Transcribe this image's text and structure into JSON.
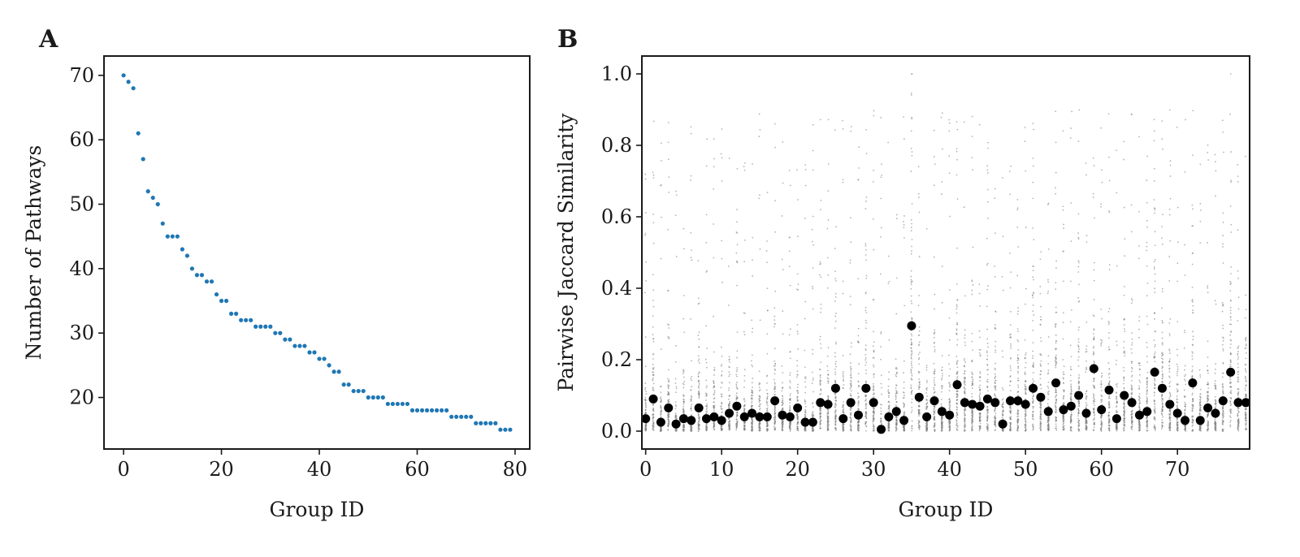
{
  "chart_data": [
    {
      "panel": "A",
      "type": "scatter",
      "xlabel": "Group ID",
      "ylabel": "Number of Pathways",
      "xlim": [
        -4,
        83
      ],
      "ylim": [
        12,
        73
      ],
      "xticks": [
        0,
        20,
        40,
        60,
        80
      ],
      "yticks": [
        20,
        30,
        40,
        50,
        60,
        70
      ],
      "grid": false,
      "legend": "none",
      "color": "#1f77b4",
      "x": [
        0,
        1,
        2,
        3,
        4,
        5,
        6,
        7,
        8,
        9,
        10,
        11,
        12,
        13,
        14,
        15,
        16,
        17,
        18,
        19,
        20,
        21,
        22,
        23,
        24,
        25,
        26,
        27,
        28,
        29,
        30,
        31,
        32,
        33,
        34,
        35,
        36,
        37,
        38,
        39,
        40,
        41,
        42,
        43,
        44,
        45,
        46,
        47,
        48,
        49,
        50,
        51,
        52,
        53,
        54,
        55,
        56,
        57,
        58,
        59,
        60,
        61,
        62,
        63,
        64,
        65,
        66,
        67,
        68,
        69,
        70,
        71,
        72,
        73,
        74,
        75,
        76,
        77,
        78,
        79
      ],
      "y": [
        70,
        69,
        68,
        61,
        57,
        52,
        51,
        50,
        47,
        45,
        45,
        45,
        43,
        42,
        40,
        39,
        39,
        38,
        38,
        36,
        35,
        35,
        33,
        33,
        32,
        32,
        32,
        31,
        31,
        31,
        31,
        30,
        30,
        29,
        29,
        28,
        28,
        28,
        27,
        27,
        26,
        26,
        25,
        24,
        24,
        22,
        22,
        21,
        21,
        21,
        20,
        20,
        20,
        20,
        19,
        19,
        19,
        19,
        19,
        18,
        18,
        18,
        18,
        18,
        18,
        18,
        18,
        17,
        17,
        17,
        17,
        17,
        16,
        16,
        16,
        16,
        16,
        15,
        15,
        15
      ]
    },
    {
      "panel": "B",
      "type": "scatter",
      "xlabel": "Group ID",
      "ylabel": "Pairwise Jaccard Similarity",
      "xlim": [
        -0.5,
        79.5
      ],
      "ylim": [
        -0.05,
        1.05
      ],
      "xticks": [
        0,
        10,
        20,
        30,
        40,
        50,
        60,
        70
      ],
      "yticks": [
        0.0,
        0.2,
        0.4,
        0.6,
        0.8,
        1.0
      ],
      "grid": false,
      "legend": "none",
      "pairwise_color": "#808080",
      "mean_color": "#000000",
      "mean_series": {
        "x": [
          0,
          1,
          2,
          3,
          4,
          5,
          6,
          7,
          8,
          9,
          10,
          11,
          12,
          13,
          14,
          15,
          16,
          17,
          18,
          19,
          20,
          21,
          22,
          23,
          24,
          25,
          26,
          27,
          28,
          29,
          30,
          31,
          32,
          33,
          34,
          35,
          36,
          37,
          38,
          39,
          40,
          41,
          42,
          43,
          44,
          45,
          46,
          47,
          48,
          49,
          50,
          51,
          52,
          53,
          54,
          55,
          56,
          57,
          58,
          59,
          60,
          61,
          62,
          63,
          64,
          65,
          66,
          67,
          68,
          69,
          70,
          71,
          72,
          73,
          74,
          75,
          76,
          77,
          78,
          79
        ],
        "y": [
          0.035,
          0.09,
          0.025,
          0.065,
          0.02,
          0.035,
          0.03,
          0.065,
          0.035,
          0.04,
          0.03,
          0.05,
          0.07,
          0.04,
          0.05,
          0.04,
          0.04,
          0.085,
          0.045,
          0.04,
          0.065,
          0.025,
          0.025,
          0.08,
          0.075,
          0.12,
          0.035,
          0.08,
          0.045,
          0.12,
          0.08,
          0.005,
          0.04,
          0.055,
          0.03,
          0.295,
          0.095,
          0.04,
          0.085,
          0.055,
          0.045,
          0.13,
          0.08,
          0.075,
          0.07,
          0.09,
          0.08,
          0.02,
          0.085,
          0.085,
          0.075,
          0.12,
          0.095,
          0.055,
          0.135,
          0.06,
          0.07,
          0.1,
          0.05,
          0.175,
          0.06,
          0.115,
          0.035,
          0.1,
          0.08,
          0.045,
          0.055,
          0.165,
          0.12,
          0.075,
          0.05,
          0.03,
          0.135,
          0.03,
          0.065,
          0.05,
          0.085,
          0.165,
          0.08,
          0.08
        ]
      }
    }
  ],
  "panels": {
    "a_letter": "A",
    "b_letter": "B"
  }
}
